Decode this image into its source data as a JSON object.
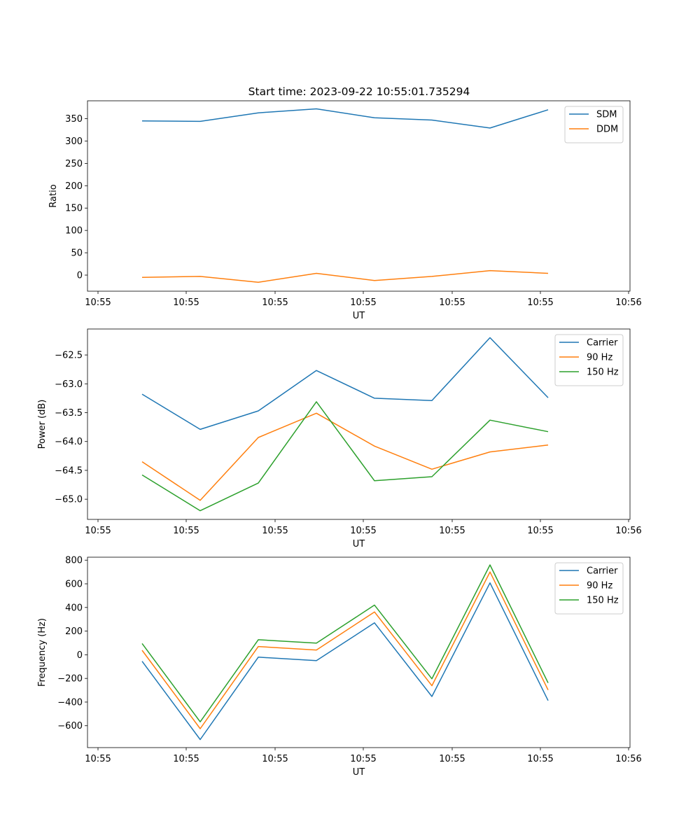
{
  "figure_title": "Start time: 2023-09-22 10:55:01.735294",
  "chart_data": [
    {
      "type": "line",
      "title": "Start time: 2023-09-22 10:55:01.735294",
      "xlabel": "UT",
      "ylabel": "Ratio",
      "x_tick_labels": [
        "10:55",
        "10:55",
        "10:55",
        "10:55",
        "10:55",
        "10:55",
        "10:56"
      ],
      "y_ticks": [
        0,
        50,
        100,
        150,
        200,
        250,
        300,
        350
      ],
      "ylim": [
        -36,
        390
      ],
      "legend_position": "top-right",
      "series": [
        {
          "name": "SDM",
          "color": "#1f77b4",
          "values": [
            345,
            344,
            363,
            372,
            352,
            347,
            329,
            370
          ]
        },
        {
          "name": "DDM",
          "color": "#ff7f0e",
          "values": [
            -5,
            -3,
            -16,
            4,
            -12,
            -3,
            10,
            4
          ]
        }
      ]
    },
    {
      "type": "line",
      "title": "",
      "xlabel": "UT",
      "ylabel": "Power (dB)",
      "x_tick_labels": [
        "10:55",
        "10:55",
        "10:55",
        "10:55",
        "10:55",
        "10:55",
        "10:56"
      ],
      "y_ticks": [
        -65.0,
        -64.5,
        -64.0,
        -63.5,
        -63.0,
        -62.5
      ],
      "y_tick_labels": [
        "−65.0",
        "−64.5",
        "−64.0",
        "−63.5",
        "−63.0",
        "−62.5"
      ],
      "ylim": [
        -65.35,
        -62.05
      ],
      "legend_position": "top-right",
      "series": [
        {
          "name": "Carrier",
          "color": "#1f77b4",
          "values": [
            -63.18,
            -63.79,
            -63.47,
            -62.77,
            -63.25,
            -63.29,
            -62.2,
            -63.24
          ]
        },
        {
          "name": "90 Hz",
          "color": "#ff7f0e",
          "values": [
            -64.35,
            -65.02,
            -63.93,
            -63.51,
            -64.08,
            -64.48,
            -64.18,
            -64.06
          ]
        },
        {
          "name": "150 Hz",
          "color": "#2ca02c",
          "values": [
            -64.58,
            -65.2,
            -64.72,
            -63.31,
            -64.68,
            -64.61,
            -63.63,
            -63.83
          ]
        }
      ]
    },
    {
      "type": "line",
      "title": "",
      "xlabel": "UT",
      "ylabel": "Frequency (Hz)",
      "x_tick_labels": [
        "10:55",
        "10:55",
        "10:55",
        "10:55",
        "10:55",
        "10:55",
        "10:56"
      ],
      "y_ticks": [
        -600,
        -400,
        -200,
        0,
        200,
        400,
        600,
        800
      ],
      "y_tick_labels": [
        "−600",
        "−400",
        "−200",
        "0",
        "200",
        "400",
        "600",
        "800"
      ],
      "ylim": [
        -785,
        825
      ],
      "legend_position": "top-right",
      "series": [
        {
          "name": "Carrier",
          "color": "#1f77b4",
          "values": [
            -55,
            -717,
            -20,
            -50,
            270,
            -353,
            608,
            -387
          ]
        },
        {
          "name": "90 Hz",
          "color": "#ff7f0e",
          "values": [
            38,
            -625,
            70,
            40,
            362,
            -262,
            700,
            -298
          ]
        },
        {
          "name": "150 Hz",
          "color": "#2ca02c",
          "values": [
            95,
            -567,
            127,
            98,
            420,
            -203,
            760,
            -238
          ]
        }
      ]
    }
  ]
}
